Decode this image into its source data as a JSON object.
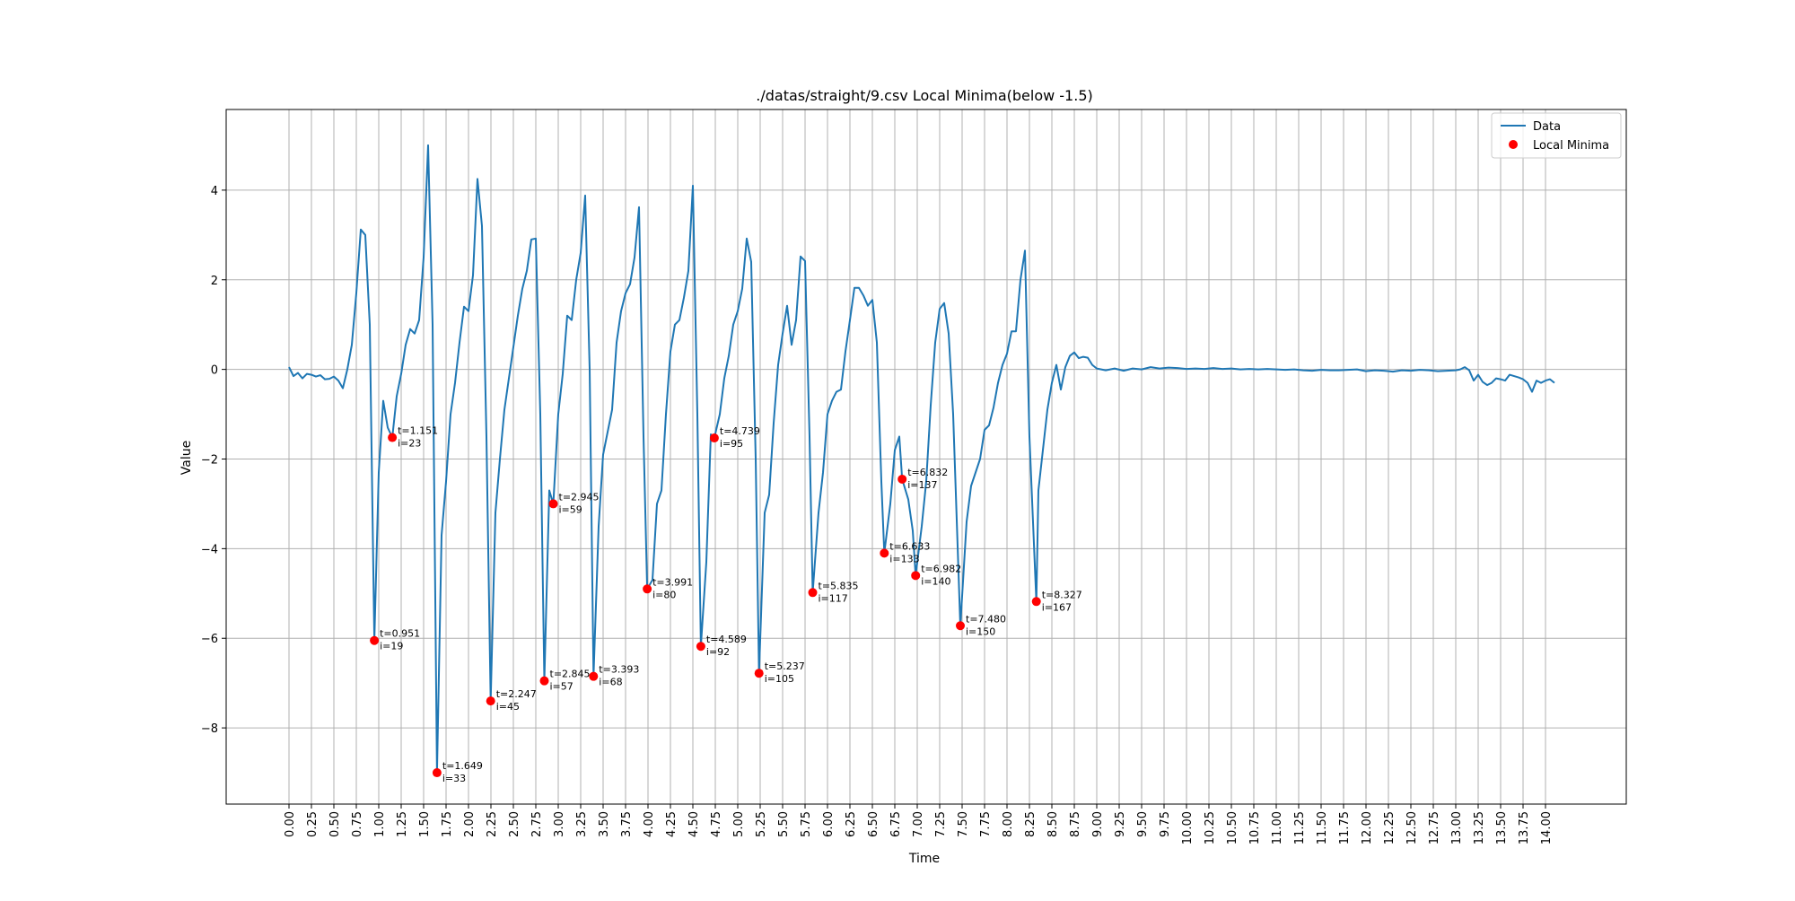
{
  "chart_data": {
    "type": "line",
    "title": "./datas/straight/9.csv Local Minima(below -1.5)",
    "xlabel": "Time",
    "ylabel": "Value",
    "xlim": [
      -0.7,
      14.9
    ],
    "ylim": [
      -9.7,
      5.8
    ],
    "grid": true,
    "legend_placement": "top-right",
    "colors": {
      "line": "#1f77b4",
      "minima": "#ff0000",
      "grid": "#b0b0b0"
    },
    "x_ticks": [
      "0.00",
      "0.25",
      "0.50",
      "0.75",
      "1.00",
      "1.25",
      "1.50",
      "1.75",
      "2.00",
      "2.25",
      "2.50",
      "2.75",
      "3.00",
      "3.25",
      "3.50",
      "3.75",
      "4.00",
      "4.25",
      "4.50",
      "4.75",
      "5.00",
      "5.25",
      "5.50",
      "5.75",
      "6.00",
      "6.25",
      "6.50",
      "6.75",
      "7.00",
      "7.25",
      "7.50",
      "7.75",
      "8.00",
      "8.25",
      "8.50",
      "8.75",
      "9.00",
      "9.25",
      "9.50",
      "9.75",
      "10.00",
      "10.25",
      "10.50",
      "10.75",
      "11.00",
      "11.25",
      "11.50",
      "11.75",
      "12.00",
      "12.25",
      "12.50",
      "12.75",
      "13.00",
      "13.25",
      "13.50",
      "13.75",
      "14.00"
    ],
    "y_ticks": [
      4,
      2,
      0,
      -2,
      -4,
      -6,
      -8
    ],
    "y_tick_labels": [
      "4",
      "2",
      "0",
      "−2",
      "−4",
      "−6",
      "−8"
    ],
    "series": [
      {
        "name": "Data",
        "points": [
          [
            0.0,
            0.05
          ],
          [
            0.05,
            -0.15
          ],
          [
            0.1,
            -0.08
          ],
          [
            0.15,
            -0.2
          ],
          [
            0.2,
            -0.1
          ],
          [
            0.25,
            -0.12
          ],
          [
            0.3,
            -0.16
          ],
          [
            0.35,
            -0.13
          ],
          [
            0.4,
            -0.22
          ],
          [
            0.45,
            -0.21
          ],
          [
            0.5,
            -0.16
          ],
          [
            0.55,
            -0.25
          ],
          [
            0.6,
            -0.42
          ],
          [
            0.65,
            0.0
          ],
          [
            0.7,
            0.55
          ],
          [
            0.75,
            1.7
          ],
          [
            0.8,
            3.12
          ],
          [
            0.85,
            3.0
          ],
          [
            0.9,
            1.0
          ],
          [
            0.951,
            -6.05
          ],
          [
            1.0,
            -2.3
          ],
          [
            1.05,
            -0.7
          ],
          [
            1.1,
            -1.3
          ],
          [
            1.151,
            -1.52
          ],
          [
            1.2,
            -0.6
          ],
          [
            1.25,
            -0.1
          ],
          [
            1.3,
            0.55
          ],
          [
            1.35,
            0.9
          ],
          [
            1.4,
            0.8
          ],
          [
            1.45,
            1.1
          ],
          [
            1.5,
            2.5
          ],
          [
            1.55,
            5.0
          ],
          [
            1.6,
            1.0
          ],
          [
            1.649,
            -9.0
          ],
          [
            1.7,
            -3.7
          ],
          [
            1.75,
            -2.5
          ],
          [
            1.8,
            -1.0
          ],
          [
            1.85,
            -0.3
          ],
          [
            1.9,
            0.6
          ],
          [
            1.95,
            1.4
          ],
          [
            2.0,
            1.3
          ],
          [
            2.05,
            2.1
          ],
          [
            2.1,
            4.25
          ],
          [
            2.15,
            3.2
          ],
          [
            2.2,
            -1.5
          ],
          [
            2.247,
            -7.4
          ],
          [
            2.3,
            -3.2
          ],
          [
            2.35,
            -2.0
          ],
          [
            2.4,
            -0.9
          ],
          [
            2.45,
            -0.2
          ],
          [
            2.5,
            0.5
          ],
          [
            2.55,
            1.2
          ],
          [
            2.6,
            1.8
          ],
          [
            2.65,
            2.2
          ],
          [
            2.7,
            2.9
          ],
          [
            2.75,
            2.92
          ],
          [
            2.8,
            -1.0
          ],
          [
            2.845,
            -6.95
          ],
          [
            2.9,
            -2.7
          ],
          [
            2.945,
            -3.0
          ],
          [
            3.0,
            -1.0
          ],
          [
            3.05,
            -0.1
          ],
          [
            3.1,
            1.2
          ],
          [
            3.15,
            1.1
          ],
          [
            3.2,
            2.0
          ],
          [
            3.25,
            2.6
          ],
          [
            3.3,
            3.88
          ],
          [
            3.35,
            0.0
          ],
          [
            3.393,
            -6.85
          ],
          [
            3.45,
            -3.5
          ],
          [
            3.5,
            -1.9
          ],
          [
            3.55,
            -1.4
          ],
          [
            3.6,
            -0.9
          ],
          [
            3.65,
            0.6
          ],
          [
            3.7,
            1.3
          ],
          [
            3.75,
            1.7
          ],
          [
            3.8,
            1.9
          ],
          [
            3.85,
            2.5
          ],
          [
            3.9,
            3.62
          ],
          [
            3.95,
            -1.5
          ],
          [
            3.991,
            -4.9
          ],
          [
            4.05,
            -4.7
          ],
          [
            4.1,
            -3.0
          ],
          [
            4.15,
            -2.7
          ],
          [
            4.2,
            -1.0
          ],
          [
            4.25,
            0.4
          ],
          [
            4.3,
            1.0
          ],
          [
            4.35,
            1.1
          ],
          [
            4.4,
            1.6
          ],
          [
            4.45,
            2.2
          ],
          [
            4.5,
            4.1
          ],
          [
            4.55,
            -1.0
          ],
          [
            4.589,
            -6.18
          ],
          [
            4.65,
            -4.3
          ],
          [
            4.7,
            -1.45
          ],
          [
            4.739,
            -1.53
          ],
          [
            4.8,
            -1.0
          ],
          [
            4.85,
            -0.2
          ],
          [
            4.9,
            0.3
          ],
          [
            4.95,
            1.0
          ],
          [
            5.0,
            1.3
          ],
          [
            5.05,
            1.8
          ],
          [
            5.1,
            2.92
          ],
          [
            5.15,
            2.4
          ],
          [
            5.2,
            -2.0
          ],
          [
            5.237,
            -6.78
          ],
          [
            5.3,
            -3.2
          ],
          [
            5.35,
            -2.8
          ],
          [
            5.4,
            -1.2
          ],
          [
            5.45,
            0.1
          ],
          [
            5.5,
            0.8
          ],
          [
            5.55,
            1.42
          ],
          [
            5.6,
            0.55
          ],
          [
            5.65,
            1.1
          ],
          [
            5.7,
            2.52
          ],
          [
            5.75,
            2.42
          ],
          [
            5.8,
            -1.5
          ],
          [
            5.835,
            -4.98
          ],
          [
            5.9,
            -3.2
          ],
          [
            5.95,
            -2.3
          ],
          [
            6.0,
            -1.0
          ],
          [
            6.05,
            -0.7
          ],
          [
            6.1,
            -0.5
          ],
          [
            6.15,
            -0.45
          ],
          [
            6.2,
            0.4
          ],
          [
            6.25,
            1.1
          ],
          [
            6.3,
            1.82
          ],
          [
            6.35,
            1.82
          ],
          [
            6.4,
            1.65
          ],
          [
            6.45,
            1.42
          ],
          [
            6.5,
            1.55
          ],
          [
            6.55,
            0.6
          ],
          [
            6.6,
            -2.5
          ],
          [
            6.633,
            -4.1
          ],
          [
            6.7,
            -3.0
          ],
          [
            6.75,
            -1.8
          ],
          [
            6.8,
            -1.5
          ],
          [
            6.832,
            -2.45
          ],
          [
            6.9,
            -2.9
          ],
          [
            6.95,
            -3.6
          ],
          [
            6.982,
            -4.6
          ],
          [
            7.05,
            -3.5
          ],
          [
            7.1,
            -2.5
          ],
          [
            7.15,
            -0.8
          ],
          [
            7.2,
            0.6
          ],
          [
            7.25,
            1.35
          ],
          [
            7.3,
            1.48
          ],
          [
            7.35,
            0.8
          ],
          [
            7.4,
            -1.0
          ],
          [
            7.48,
            -5.72
          ],
          [
            7.55,
            -3.4
          ],
          [
            7.6,
            -2.6
          ],
          [
            7.65,
            -2.3
          ],
          [
            7.7,
            -2.0
          ],
          [
            7.75,
            -1.35
          ],
          [
            7.8,
            -1.25
          ],
          [
            7.85,
            -0.85
          ],
          [
            7.9,
            -0.3
          ],
          [
            7.95,
            0.1
          ],
          [
            8.0,
            0.35
          ],
          [
            8.05,
            0.85
          ],
          [
            8.1,
            0.85
          ],
          [
            8.15,
            2.0
          ],
          [
            8.2,
            2.65
          ],
          [
            8.25,
            -1.5
          ],
          [
            8.327,
            -5.18
          ],
          [
            8.35,
            -2.7
          ],
          [
            8.4,
            -1.8
          ],
          [
            8.45,
            -0.9
          ],
          [
            8.5,
            -0.3
          ],
          [
            8.55,
            0.1
          ],
          [
            8.6,
            -0.45
          ],
          [
            8.65,
            0.05
          ],
          [
            8.7,
            0.3
          ],
          [
            8.75,
            0.38
          ],
          [
            8.8,
            0.25
          ],
          [
            8.85,
            0.28
          ],
          [
            8.9,
            0.26
          ],
          [
            8.95,
            0.1
          ],
          [
            9.0,
            0.02
          ],
          [
            9.1,
            -0.02
          ],
          [
            9.2,
            0.02
          ],
          [
            9.3,
            -0.03
          ],
          [
            9.4,
            0.02
          ],
          [
            9.5,
            0.0
          ],
          [
            9.6,
            0.05
          ],
          [
            9.7,
            0.02
          ],
          [
            9.8,
            0.04
          ],
          [
            9.9,
            0.03
          ],
          [
            10.0,
            0.01
          ],
          [
            10.1,
            0.02
          ],
          [
            10.2,
            0.01
          ],
          [
            10.3,
            0.03
          ],
          [
            10.4,
            0.01
          ],
          [
            10.5,
            0.02
          ],
          [
            10.6,
            0.0
          ],
          [
            10.7,
            0.01
          ],
          [
            10.8,
            0.0
          ],
          [
            10.9,
            0.01
          ],
          [
            11.0,
            0.0
          ],
          [
            11.1,
            -0.01
          ],
          [
            11.2,
            0.0
          ],
          [
            11.3,
            -0.02
          ],
          [
            11.4,
            -0.03
          ],
          [
            11.5,
            -0.01
          ],
          [
            11.6,
            -0.02
          ],
          [
            11.7,
            -0.02
          ],
          [
            11.8,
            -0.01
          ],
          [
            11.9,
            0.0
          ],
          [
            12.0,
            -0.04
          ],
          [
            12.1,
            -0.02
          ],
          [
            12.2,
            -0.03
          ],
          [
            12.3,
            -0.05
          ],
          [
            12.4,
            -0.02
          ],
          [
            12.5,
            -0.03
          ],
          [
            12.6,
            -0.01
          ],
          [
            12.7,
            -0.02
          ],
          [
            12.8,
            -0.04
          ],
          [
            12.9,
            -0.03
          ],
          [
            13.0,
            -0.02
          ],
          [
            13.05,
            0.0
          ],
          [
            13.1,
            0.05
          ],
          [
            13.15,
            -0.02
          ],
          [
            13.2,
            -0.25
          ],
          [
            13.25,
            -0.12
          ],
          [
            13.3,
            -0.28
          ],
          [
            13.35,
            -0.35
          ],
          [
            13.4,
            -0.3
          ],
          [
            13.45,
            -0.2
          ],
          [
            13.5,
            -0.22
          ],
          [
            13.55,
            -0.25
          ],
          [
            13.6,
            -0.12
          ],
          [
            13.65,
            -0.15
          ],
          [
            13.7,
            -0.18
          ],
          [
            13.75,
            -0.22
          ],
          [
            13.8,
            -0.3
          ],
          [
            13.85,
            -0.5
          ],
          [
            13.9,
            -0.25
          ],
          [
            13.95,
            -0.3
          ],
          [
            14.0,
            -0.25
          ],
          [
            14.05,
            -0.22
          ],
          [
            14.1,
            -0.3
          ]
        ]
      }
    ],
    "minima": {
      "name": "Local Minima",
      "points": [
        {
          "t": 0.951,
          "v": -6.05,
          "t_label": "t=0.951",
          "i_label": "i=19"
        },
        {
          "t": 1.151,
          "v": -1.52,
          "t_label": "t=1.151",
          "i_label": "i=23"
        },
        {
          "t": 1.649,
          "v": -9.0,
          "t_label": "t=1.649",
          "i_label": "i=33"
        },
        {
          "t": 2.247,
          "v": -7.4,
          "t_label": "t=2.247",
          "i_label": "i=45"
        },
        {
          "t": 2.845,
          "v": -6.95,
          "t_label": "t=2.845",
          "i_label": "i=57"
        },
        {
          "t": 2.945,
          "v": -3.0,
          "t_label": "t=2.945",
          "i_label": "i=59"
        },
        {
          "t": 3.393,
          "v": -6.85,
          "t_label": "t=3.393",
          "i_label": "i=68"
        },
        {
          "t": 3.991,
          "v": -4.9,
          "t_label": "t=3.991",
          "i_label": "i=80"
        },
        {
          "t": 4.589,
          "v": -6.18,
          "t_label": "t=4.589",
          "i_label": "i=92"
        },
        {
          "t": 4.739,
          "v": -1.53,
          "t_label": "t=4.739",
          "i_label": "i=95"
        },
        {
          "t": 5.237,
          "v": -6.78,
          "t_label": "t=5.237",
          "i_label": "i=105"
        },
        {
          "t": 5.835,
          "v": -4.98,
          "t_label": "t=5.835",
          "i_label": "i=117"
        },
        {
          "t": 6.633,
          "v": -4.1,
          "t_label": "t=6.633",
          "i_label": "i=133"
        },
        {
          "t": 6.832,
          "v": -2.45,
          "t_label": "t=6.832",
          "i_label": "i=137"
        },
        {
          "t": 6.982,
          "v": -4.6,
          "t_label": "t=6.982",
          "i_label": "i=140"
        },
        {
          "t": 7.48,
          "v": -5.72,
          "t_label": "t=7.480",
          "i_label": "i=150"
        },
        {
          "t": 8.327,
          "v": -5.18,
          "t_label": "t=8.327",
          "i_label": "i=167"
        }
      ]
    },
    "legend": [
      {
        "label": "Data",
        "kind": "line"
      },
      {
        "label": "Local Minima",
        "kind": "marker"
      }
    ]
  }
}
